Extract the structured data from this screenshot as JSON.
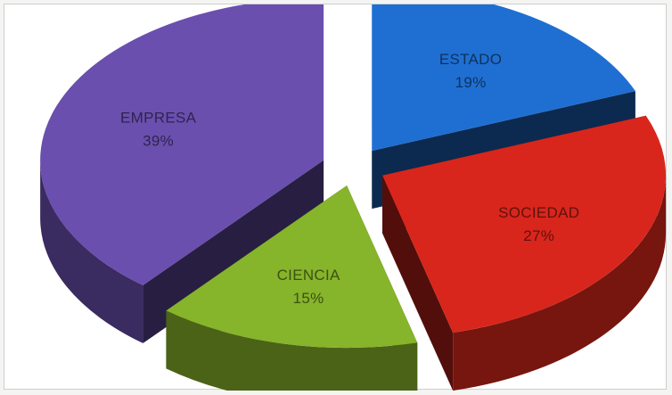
{
  "chart_data": {
    "type": "pie",
    "style": "3d-exploded",
    "title": "",
    "legend": "none",
    "slices": [
      {
        "label": "ESTADO",
        "percent_label": "19%",
        "value": 19,
        "color": "#1f6fd2"
      },
      {
        "label": "SOCIEDAD",
        "percent_label": "27%",
        "value": 27,
        "color": "#d8261c"
      },
      {
        "label": "CIENCIA",
        "percent_label": "15%",
        "value": 15,
        "color": "#86b42a"
      },
      {
        "label": "EMPRESA",
        "percent_label": "39%",
        "value": 39,
        "color": "#6a4fae"
      }
    ]
  }
}
